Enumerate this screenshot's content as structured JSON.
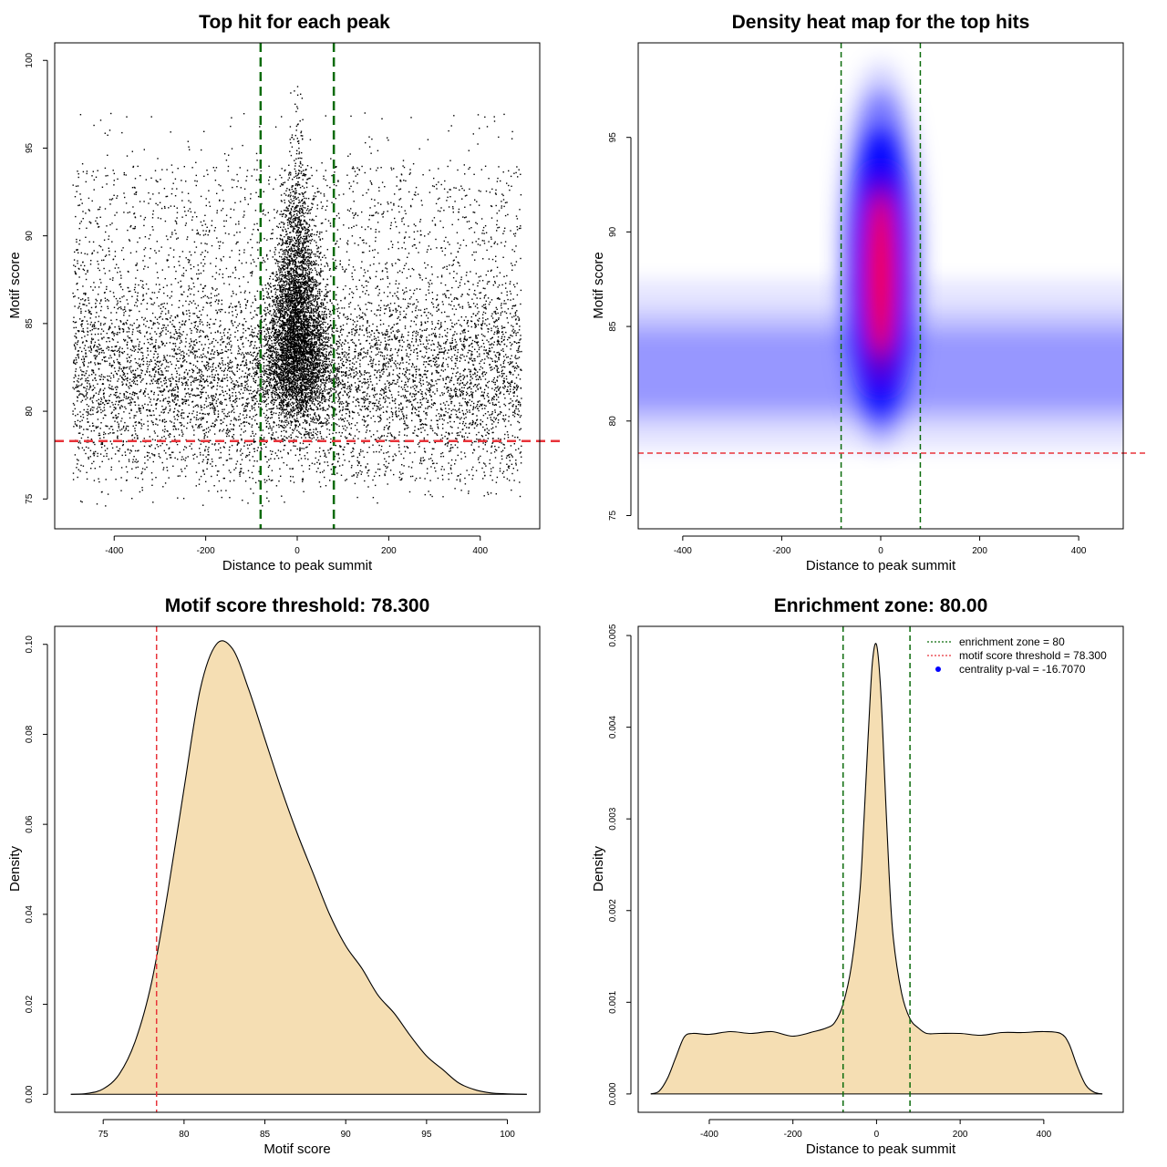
{
  "colors": {
    "density_fill": "#f5deb3",
    "threshold_line": "#e8333a",
    "zone_line": "#0b6b0b",
    "heat_low": "#ffffff",
    "heat_mid": "#0000ff",
    "heat_high": "#ff0000",
    "points": "#000000"
  },
  "chart_data": [
    {
      "type": "scatter",
      "title": "Top hit for each peak",
      "xlabel": "Distance to peak summit",
      "ylabel": "Motif score",
      "xlim": [
        -530,
        530
      ],
      "ylim": [
        73.3,
        101
      ],
      "xticks": [
        -400,
        -200,
        0,
        200,
        400
      ],
      "yticks": [
        75,
        80,
        85,
        90,
        95,
        100
      ],
      "point_count_estimate": 24000,
      "background_score_range": [
        75,
        95
      ],
      "background_score_mode": 82.5,
      "central_peak_score_max": 99.8,
      "vlines": [
        -80,
        80
      ],
      "hline": 78.3
    },
    {
      "type": "heatmap",
      "title": "Density heat map for the top hits",
      "xlabel": "Distance to peak summit",
      "ylabel": "Motif score",
      "xlim": [
        -490,
        490
      ],
      "ylim": [
        74.3,
        100
      ],
      "xticks": [
        -400,
        -200,
        0,
        200,
        400
      ],
      "yticks": [
        75,
        80,
        85,
        90,
        95
      ],
      "density_peak": {
        "x": 0,
        "y": 87
      },
      "background_band_score": 82.5,
      "vlines": [
        -80,
        80
      ],
      "hline": 78.3
    },
    {
      "type": "area",
      "title": "Motif score threshold: 78.300",
      "xlabel": "Motif score",
      "ylabel": "Density",
      "xlim": [
        72,
        102
      ],
      "ylim": [
        -0.004,
        0.104
      ],
      "xticks": [
        75,
        80,
        85,
        90,
        95,
        100
      ],
      "yticks": [
        0.0,
        0.02,
        0.04,
        0.06,
        0.08,
        0.1
      ],
      "ytick_labels": [
        "0.00",
        "0.02",
        "0.04",
        "0.06",
        "0.08",
        "0.10"
      ],
      "vline": 78.3,
      "x": [
        73,
        74,
        75,
        76,
        77,
        78,
        79,
        80,
        81,
        82,
        83,
        84,
        85,
        86,
        87,
        88,
        89,
        90,
        91,
        92,
        93,
        94,
        95,
        96,
        97,
        98,
        99,
        100,
        101.2
      ],
      "y": [
        0.0,
        0.0002,
        0.0012,
        0.0045,
        0.012,
        0.025,
        0.045,
        0.068,
        0.09,
        0.1,
        0.099,
        0.09,
        0.079,
        0.068,
        0.058,
        0.049,
        0.04,
        0.033,
        0.028,
        0.022,
        0.018,
        0.013,
        0.0085,
        0.0055,
        0.0025,
        0.001,
        0.0003,
        0.0001,
        0.0
      ]
    },
    {
      "type": "area",
      "title": "Enrichment zone: 80.00",
      "xlabel": "Distance to peak summit",
      "ylabel": "Density",
      "xlim": [
        -570,
        590
      ],
      "ylim": [
        -0.0002,
        0.0051
      ],
      "xticks": [
        -400,
        -200,
        0,
        200,
        400
      ],
      "yticks": [
        0.0,
        0.001,
        0.002,
        0.003,
        0.004,
        0.005
      ],
      "ytick_labels": [
        "0.000",
        "0.001",
        "0.002",
        "0.003",
        "0.004",
        "0.005"
      ],
      "vlines": [
        -80,
        80
      ],
      "x": [
        -540,
        -520,
        -500,
        -480,
        -460,
        -440,
        -400,
        -350,
        -300,
        -250,
        -200,
        -150,
        -120,
        -100,
        -80,
        -60,
        -40,
        -30,
        -20,
        -10,
        0,
        10,
        20,
        30,
        40,
        60,
        80,
        100,
        120,
        150,
        200,
        250,
        300,
        350,
        400,
        440,
        460,
        480,
        500,
        520,
        540
      ],
      "y": [
        0.0,
        3e-05,
        0.00017,
        0.0004,
        0.00062,
        0.00066,
        0.00065,
        0.00068,
        0.00066,
        0.00068,
        0.00063,
        0.00068,
        0.00072,
        0.00078,
        0.00098,
        0.0014,
        0.0022,
        0.003,
        0.0039,
        0.0047,
        0.0049,
        0.0044,
        0.0034,
        0.0024,
        0.0017,
        0.0011,
        0.00082,
        0.00072,
        0.00066,
        0.00066,
        0.00066,
        0.00064,
        0.00067,
        0.00067,
        0.00068,
        0.00066,
        0.00055,
        0.0003,
        0.0001,
        2e-05,
        0.0
      ],
      "legend": {
        "position": "top-right",
        "entries": [
          {
            "label": "enrichment zone = 80",
            "style": "dotted",
            "color": "#0b6b0b"
          },
          {
            "label": "motif score threshold = 78.300",
            "style": "dotted",
            "color": "#e8333a"
          },
          {
            "label": "centrality p-val = -16.7070",
            "style": "point",
            "color": "#0000ff"
          }
        ]
      }
    }
  ]
}
